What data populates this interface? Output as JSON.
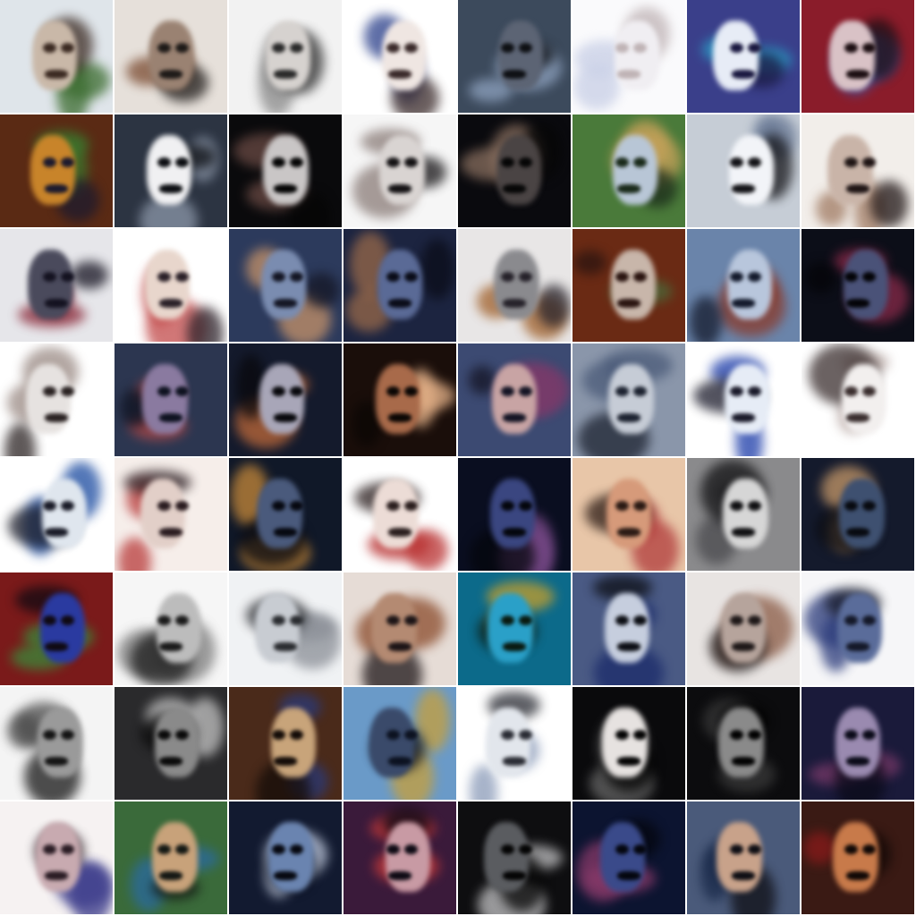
{
  "grid": {
    "columns": 8,
    "rows": 8,
    "tiles": [
      {
        "bg": "#dfe5ea",
        "face": "#c9b8a8",
        "accent": "#3a6b2e",
        "dark": "#3b2a22"
      },
      {
        "bg": "#e6e0da",
        "face": "#9a8272",
        "accent": "#7a4a30",
        "dark": "#1e1a18"
      },
      {
        "bg": "#f2f2f2",
        "face": "#d6d2cf",
        "accent": "#8a8a8a",
        "dark": "#2a2a2a"
      },
      {
        "bg": "#ffffff",
        "face": "#efe6e2",
        "accent": "#2a3f8a",
        "dark": "#3a2a2a"
      },
      {
        "bg": "#3c4a5c",
        "face": "#5c6474",
        "accent": "#8fa3c0",
        "dark": "#0e1014"
      },
      {
        "bg": "#fafafc",
        "face": "#f0eef2",
        "accent": "#c8cfe6",
        "dark": "#bfb3b5"
      },
      {
        "bg": "#3a3f8a",
        "face": "#e7ecf6",
        "accent": "#2aa0c8",
        "dark": "#1a1840"
      },
      {
        "bg": "#8a1c2a",
        "face": "#d9c2c6",
        "accent": "#3a58a8",
        "dark": "#1c0e12"
      },
      {
        "bg": "#5a2a14",
        "face": "#c8842a",
        "accent": "#3a7a2e",
        "dark": "#1c1a2e"
      },
      {
        "bg": "#2c3442",
        "face": "#f0f0f2",
        "accent": "#8d98aa",
        "dark": "#0c0e12"
      },
      {
        "bg": "#0a0a0c",
        "face": "#c9c6c6",
        "accent": "#6a4a44",
        "dark": "#050505"
      },
      {
        "bg": "#f6f6f6",
        "face": "#d9d4d2",
        "accent": "#8a7c78",
        "dark": "#141214"
      },
      {
        "bg": "#0a0a0e",
        "face": "#4a4444",
        "accent": "#8a7060",
        "dark": "#060606"
      },
      {
        "bg": "#4a7a3a",
        "face": "#b8c6d6",
        "accent": "#c8a25a",
        "dark": "#1a2a1a"
      },
      {
        "bg": "#c6cdd6",
        "face": "#f2f4f8",
        "accent": "#6a7a96",
        "dark": "#141418"
      },
      {
        "bg": "#f2eeea",
        "face": "#c9b4a8",
        "accent": "#a07a62",
        "dark": "#1e1414"
      },
      {
        "bg": "#e6e6ea",
        "face": "#4a4a5c",
        "accent": "#8a2a3a",
        "dark": "#141220"
      },
      {
        "bg": "#ffffff",
        "face": "#e8d6cc",
        "accent": "#c24a4a",
        "dark": "#2a2028"
      },
      {
        "bg": "#2c3a5c",
        "face": "#7a8cb0",
        "accent": "#c8946a",
        "dark": "#141624"
      },
      {
        "bg": "#1c2440",
        "face": "#5a6a96",
        "accent": "#9a6a4a",
        "dark": "#0a0c18"
      },
      {
        "bg": "#e8e6e6",
        "face": "#8a8a8e",
        "accent": "#a0602a",
        "dark": "#26222a"
      },
      {
        "bg": "#6a2a14",
        "face": "#c8b6aa",
        "accent": "#4a6a3a",
        "dark": "#2a1410"
      },
      {
        "bg": "#6a84aa",
        "face": "#b8c6dc",
        "accent": "#8a3a2a",
        "dark": "#141a2c"
      },
      {
        "bg": "#0c0e18",
        "face": "#4a5278",
        "accent": "#8a2a4a",
        "dark": "#040408"
      },
      {
        "bg": "#ffffff",
        "face": "#e6e2e0",
        "accent": "#9a8a84",
        "dark": "#2a2222"
      },
      {
        "bg": "#2c3650",
        "face": "#8a7aa0",
        "accent": "#b04a4a",
        "dark": "#0e1220"
      },
      {
        "bg": "#141a2c",
        "face": "#a8a6b8",
        "accent": "#c06a3a",
        "dark": "#08080c"
      },
      {
        "bg": "#1a0e0a",
        "face": "#a86a4a",
        "accent": "#e8b48a",
        "dark": "#0a0604"
      },
      {
        "bg": "#3c4a72",
        "face": "#c8a4a4",
        "accent": "#7a3a6a",
        "dark": "#141424"
      },
      {
        "bg": "#8a96aa",
        "face": "#c6ccd6",
        "accent": "#4a5a78",
        "dark": "#1c2230"
      },
      {
        "bg": "#ffffff",
        "face": "#e6ecf6",
        "accent": "#1a3aa8",
        "dark": "#1a1a2a"
      },
      {
        "bg": "#ffffff",
        "face": "#f2efee",
        "accent": "#b8a8a4",
        "dark": "#3a2e2e"
      },
      {
        "bg": "#ffffff",
        "face": "#dfe6ee",
        "accent": "#1a4aa0",
        "dark": "#1a1c28"
      },
      {
        "bg": "#f6eeea",
        "face": "#e2cfc8",
        "accent": "#b83a3a",
        "dark": "#2a1c20"
      },
      {
        "bg": "#101828",
        "face": "#4a5a7c",
        "accent": "#c88a3a",
        "dark": "#060810"
      },
      {
        "bg": "#ffffff",
        "face": "#ecdcd6",
        "accent": "#b83030",
        "dark": "#2a1e1e"
      },
      {
        "bg": "#0a0e20",
        "face": "#3a4680",
        "accent": "#7a4a8a",
        "dark": "#04060c"
      },
      {
        "bg": "#e8c6a8",
        "face": "#d69a7a",
        "accent": "#b03a3a",
        "dark": "#2a1a14"
      },
      {
        "bg": "#8a8a8c",
        "face": "#d6d6d6",
        "accent": "#4a4a4e",
        "dark": "#101012"
      },
      {
        "bg": "#141a2c",
        "face": "#3e5070",
        "accent": "#c89a6a",
        "dark": "#080a10"
      },
      {
        "bg": "#7a1a1a",
        "face": "#2a3aa0",
        "accent": "#3a8a3a",
        "dark": "#100a12"
      },
      {
        "bg": "#f6f6f6",
        "face": "#bcbcbc",
        "accent": "#7a7a7a",
        "dark": "#1a1a1a"
      },
      {
        "bg": "#f0f2f4",
        "face": "#c8ccd2",
        "accent": "#8a8e96",
        "dark": "#2a2c30"
      },
      {
        "bg": "#e6dcd6",
        "face": "#b48a72",
        "accent": "#8a4a2a",
        "dark": "#1c1416"
      },
      {
        "bg": "#0c6a8a",
        "face": "#2aa0c8",
        "accent": "#c8a02a",
        "dark": "#0a1a10"
      },
      {
        "bg": "#4a5a84",
        "face": "#c6cede",
        "accent": "#1a2a6a",
        "dark": "#0c0e14"
      },
      {
        "bg": "#e8e4e2",
        "face": "#b6a49c",
        "accent": "#8a5a44",
        "dark": "#1e1818"
      },
      {
        "bg": "#f6f6f8",
        "face": "#5a6c9a",
        "accent": "#2a3a7a",
        "dark": "#141828"
      },
      {
        "bg": "#f4f4f4",
        "face": "#9a9a9a",
        "accent": "#4a4a4a",
        "dark": "#141414"
      },
      {
        "bg": "#2a2a2c",
        "face": "#8a8a8a",
        "accent": "#c6c6c6",
        "dark": "#0a0a0a"
      },
      {
        "bg": "#4a2a1a",
        "face": "#c8a47a",
        "accent": "#2a3a7a",
        "dark": "#140c08"
      },
      {
        "bg": "#6a9ac8",
        "face": "#3a4a6a",
        "accent": "#c8a03a",
        "dark": "#0c1220"
      },
      {
        "bg": "#ffffff",
        "face": "#e2e6ec",
        "accent": "#8a9ab8",
        "dark": "#2a2c34"
      },
      {
        "bg": "#0a0a0c",
        "face": "#e6e2e0",
        "accent": "#6a6a6a",
        "dark": "#040404"
      },
      {
        "bg": "#0c0c0e",
        "face": "#8a8a8a",
        "accent": "#3a3a3a",
        "dark": "#020202"
      },
      {
        "bg": "#1a1a3a",
        "face": "#9a8ab0",
        "accent": "#7a3a6a",
        "dark": "#0a0a18"
      },
      {
        "bg": "#f6f2f2",
        "face": "#c8aab0",
        "accent": "#3a3a8a",
        "dark": "#2a1c24"
      },
      {
        "bg": "#3a6a3a",
        "face": "#c8a27a",
        "accent": "#2a6aa0",
        "dark": "#141814"
      },
      {
        "bg": "#121a30",
        "face": "#6a84b0",
        "accent": "#c8d2e6",
        "dark": "#060810"
      },
      {
        "bg": "#3a1a3a",
        "face": "#c89aa4",
        "accent": "#c83a3a",
        "dark": "#0e0a14"
      },
      {
        "bg": "#0e0e10",
        "face": "#5a5c60",
        "accent": "#c6c6c8",
        "dark": "#040404"
      },
      {
        "bg": "#0c1430",
        "face": "#3a4a8a",
        "accent": "#8a3a6a",
        "dark": "#04060e"
      },
      {
        "bg": "#4a5a7a",
        "face": "#c8a28a",
        "accent": "#1a2a4a",
        "dark": "#0e0e14"
      },
      {
        "bg": "#3a1a14",
        "face": "#c87a4a",
        "accent": "#8a1a1a",
        "dark": "#100806"
      }
    ]
  }
}
